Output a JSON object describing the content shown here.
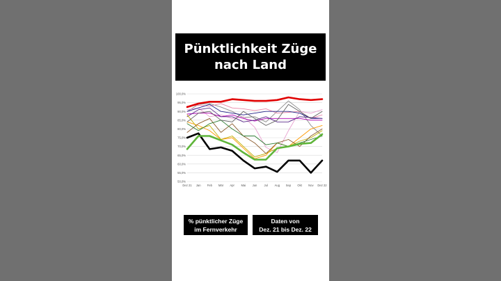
{
  "title": {
    "line1": "Pünktlichkeit Züge",
    "line2": "nach Land"
  },
  "info_left": {
    "line1": "% pünktlicher Züge",
    "line2": "im Fernverkehr"
  },
  "info_right": {
    "line1": "Daten von",
    "line2": "Dez. 21 bis Dez. 22"
  },
  "chart_data": {
    "type": "line",
    "categories": [
      "Dez 21",
      "Jan",
      "Feb",
      "Mär",
      "Apr",
      "Mai",
      "Jun",
      "Jul",
      "Aug",
      "Sep",
      "Okt",
      "Nov",
      "Dez 22"
    ],
    "ylim": [
      50,
      100
    ],
    "yticks": [
      "50,0%",
      "55,0%",
      "60,0%",
      "65,0%",
      "70,0%",
      "75,0%",
      "80,0%",
      "85,0%",
      "90,0%",
      "95,0%",
      "100,0%"
    ],
    "grid": true,
    "legend": "none",
    "series": [
      {
        "color": "#e00000",
        "width": 2.6,
        "values": [
          92.5,
          94.5,
          95.5,
          95.5,
          97,
          96.5,
          96,
          96,
          96.5,
          98,
          97,
          96.5,
          97
        ]
      },
      {
        "color": "#000000",
        "width": 2.6,
        "values": [
          75,
          77.5,
          68.5,
          69.5,
          67.5,
          62,
          57.5,
          58.5,
          55.5,
          62,
          62,
          55,
          62
        ]
      },
      {
        "color": "#5fb53a",
        "width": 2.6,
        "values": [
          68.5,
          76,
          76,
          73.5,
          71,
          66.5,
          62.5,
          62.5,
          69,
          70,
          71.5,
          72,
          77
        ]
      },
      {
        "color": "#8a8a8a",
        "width": 0.9,
        "values": [
          90,
          94,
          94.5,
          92.5,
          90,
          86.5,
          87,
          84,
          90,
          96,
          91,
          82,
          76
        ]
      },
      {
        "color": "#e887a8",
        "width": 0.9,
        "values": [
          93,
          93.5,
          93,
          94.5,
          92,
          91.5,
          90.5,
          91.5,
          89,
          89.5,
          90,
          86,
          88
        ]
      },
      {
        "color": "#e8a0d0",
        "width": 0.9,
        "values": [
          91,
          92,
          87,
          88,
          86,
          87,
          81,
          69.5,
          66.5,
          79,
          90,
          89,
          91
        ]
      },
      {
        "color": "#b000b0",
        "width": 0.9,
        "values": [
          88.5,
          89,
          89,
          87,
          88,
          86,
          84.5,
          86,
          86,
          86,
          86,
          85,
          85
        ]
      },
      {
        "color": "#222288",
        "width": 0.9,
        "values": [
          90,
          92,
          94,
          90,
          89,
          88,
          89,
          90,
          90,
          90,
          89,
          86,
          86
        ]
      },
      {
        "color": "#5a2a8a",
        "width": 0.9,
        "values": [
          87,
          91,
          92,
          87,
          87,
          84,
          85,
          87,
          84,
          84,
          87,
          86.5,
          86
        ]
      },
      {
        "color": "#ff9900",
        "width": 0.9,
        "values": [
          84,
          82,
          79,
          74,
          75,
          69,
          63,
          65,
          72,
          70,
          75,
          80,
          82
        ]
      },
      {
        "color": "#c0b000",
        "width": 0.9,
        "values": [
          88,
          80,
          82,
          74,
          76,
          70,
          64,
          66,
          69,
          70,
          73,
          75,
          79
        ]
      },
      {
        "color": "#8b5a2b",
        "width": 0.9,
        "values": [
          78,
          83,
          86,
          78,
          83,
          76,
          72,
          66,
          72,
          74,
          70,
          76,
          80
        ]
      },
      {
        "color": "#2e7d32",
        "width": 0.9,
        "values": [
          83,
          79,
          83,
          85,
          80,
          76,
          76,
          71,
          72,
          70,
          72,
          74,
          76
        ]
      },
      {
        "color": "#606060",
        "width": 0.9,
        "values": [
          84,
          89,
          90,
          85,
          84,
          90,
          86,
          82,
          85,
          94,
          90,
          86,
          90
        ]
      }
    ]
  }
}
